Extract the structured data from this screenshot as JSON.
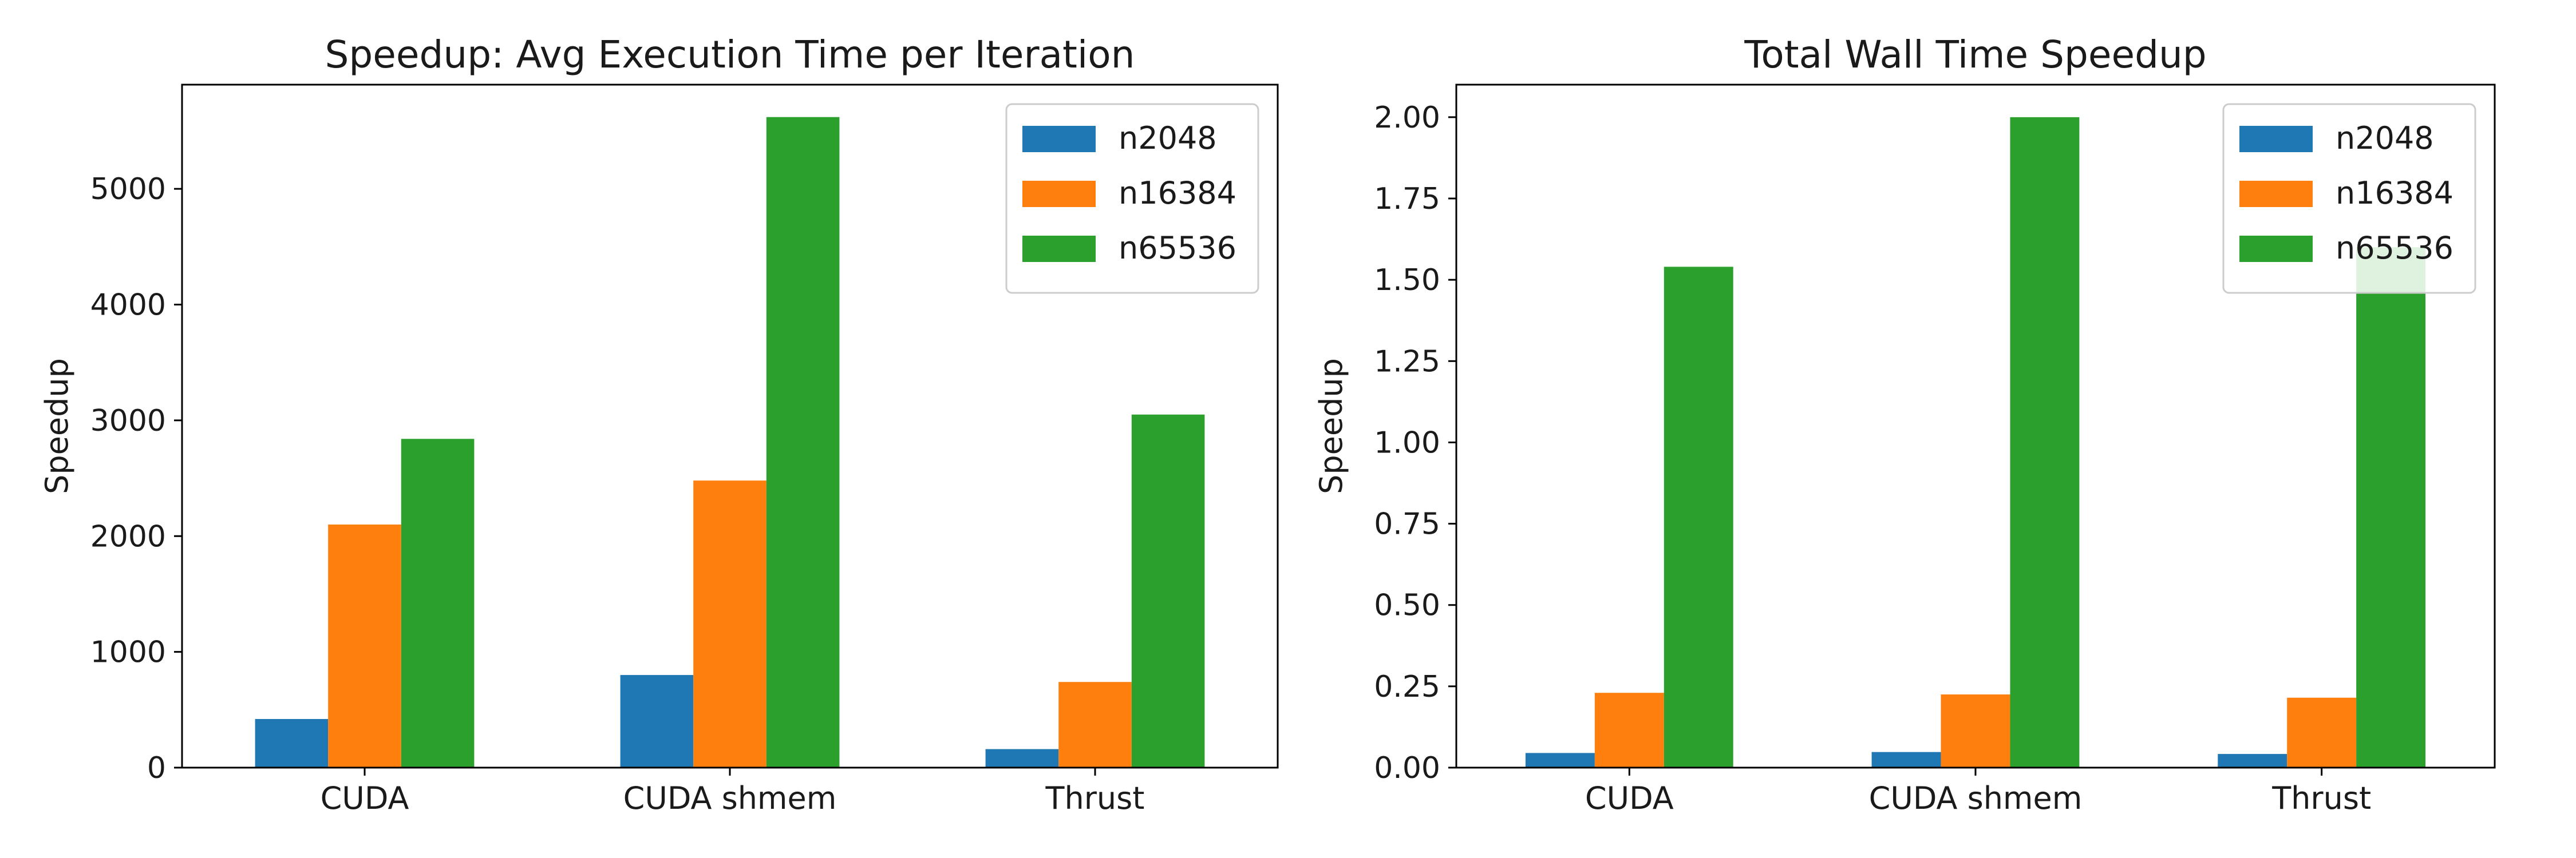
{
  "chart_data": [
    {
      "type": "bar",
      "title": "Speedup: Avg Execution Time per Iteration",
      "xlabel": "",
      "ylabel": "Speedup",
      "categories": [
        "CUDA",
        "CUDA shmem",
        "Thrust"
      ],
      "ylim": [
        0,
        5900
      ],
      "yticks": [
        0,
        1000,
        2000,
        3000,
        4000,
        5000
      ],
      "ytick_labels": [
        "0",
        "1000",
        "2000",
        "3000",
        "4000",
        "5000"
      ],
      "legend_position": "top-right",
      "grid": false,
      "series": [
        {
          "name": "n2048",
          "color": "#1f77b4",
          "values": [
            420,
            800,
            160
          ]
        },
        {
          "name": "n16384",
          "color": "#ff7f0e",
          "values": [
            2100,
            2480,
            740
          ]
        },
        {
          "name": "n65536",
          "color": "#2ca02c",
          "values": [
            2840,
            5620,
            3050
          ]
        }
      ]
    },
    {
      "type": "bar",
      "title": "Total Wall Time Speedup",
      "xlabel": "",
      "ylabel": "Speedup",
      "categories": [
        "CUDA",
        "CUDA shmem",
        "Thrust"
      ],
      "ylim": [
        0,
        2.1
      ],
      "yticks": [
        0,
        0.25,
        0.5,
        0.75,
        1.0,
        1.25,
        1.5,
        1.75,
        2.0
      ],
      "ytick_labels": [
        "0.00",
        "0.25",
        "0.50",
        "0.75",
        "1.00",
        "1.25",
        "1.50",
        "1.75",
        "2.00"
      ],
      "legend_position": "top-right",
      "grid": false,
      "series": [
        {
          "name": "n2048",
          "color": "#1f77b4",
          "values": [
            0.045,
            0.048,
            0.042
          ]
        },
        {
          "name": "n16384",
          "color": "#ff7f0e",
          "values": [
            0.23,
            0.225,
            0.215
          ]
        },
        {
          "name": "n65536",
          "color": "#2ca02c",
          "values": [
            1.54,
            2.0,
            1.6
          ]
        }
      ]
    }
  ]
}
